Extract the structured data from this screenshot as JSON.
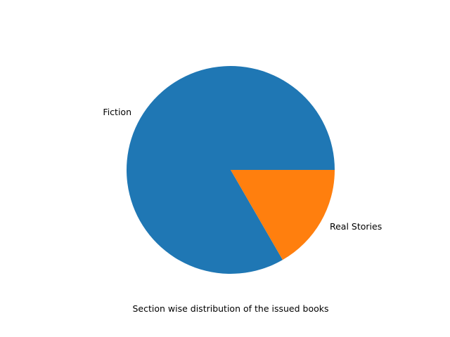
{
  "chart_data": {
    "type": "pie",
    "slices": [
      {
        "label": "Fiction",
        "value": 5,
        "color": "#1f77b4"
      },
      {
        "label": "Real Stories",
        "value": 1,
        "color": "#ff7f0e"
      }
    ],
    "start_angle_deg": 0,
    "direction": "counterclockwise",
    "caption": "Section wise distribution of the issued books"
  }
}
